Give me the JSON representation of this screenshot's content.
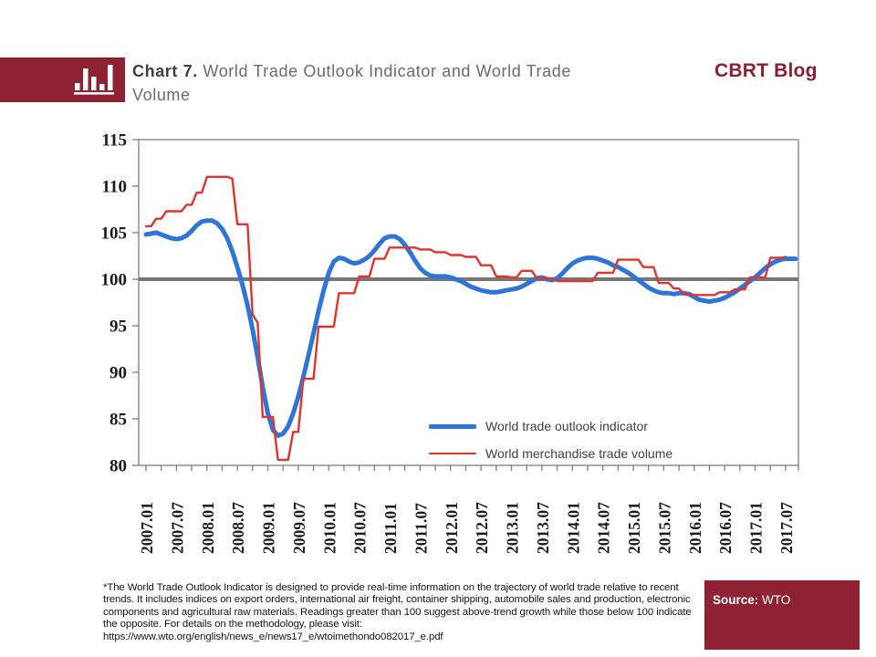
{
  "header": {
    "chart_label": "Chart 7.",
    "title_rest": " World Trade Outlook Indicator and World Trade Volume",
    "brand": "CBRT Blog"
  },
  "colors": {
    "brand_red": "#8E2132",
    "series_blue": "#2E75D8",
    "series_red": "#E0342C",
    "baseline_gray": "#767676",
    "axis_gray": "#808080"
  },
  "chart_data": {
    "type": "line",
    "title": "Chart 7. World Trade Outlook Indicator and World Trade Volume",
    "xlabel": "",
    "ylabel": "",
    "ylim": [
      80,
      115
    ],
    "y_ticks": [
      115,
      110,
      105,
      100,
      95,
      90,
      85,
      80
    ],
    "baseline": 100,
    "grid": false,
    "legend_position": "inside-bottom-right",
    "x_start": "2007.01",
    "x_frequency": "monthly",
    "x_tick_labels": [
      "2007.01",
      "2007.07",
      "2008.01",
      "2008.07",
      "2009.01",
      "2009.07",
      "2010.01",
      "2010.07",
      "2011.01",
      "2011.07",
      "2012.01",
      "2012.07",
      "2013.01",
      "2013.07",
      "2014.01",
      "2014.07",
      "2015.01",
      "2015.07",
      "2016.01",
      "2016.07",
      "2017.01",
      "2017.07"
    ],
    "series": [
      {
        "name": "World trade outlook indicator",
        "color": "#2E75D8",
        "width": 5,
        "range": "2007.01-2017.09",
        "values": [
          104.8,
          104.9,
          105.0,
          104.8,
          104.6,
          104.4,
          104.3,
          104.4,
          104.7,
          105.2,
          105.8,
          106.2,
          106.3,
          106.3,
          106.0,
          105.4,
          104.4,
          103.0,
          101.3,
          99.4,
          97.2,
          94.6,
          91.6,
          88.4,
          85.6,
          83.8,
          83.2,
          83.4,
          84.2,
          85.6,
          87.4,
          89.5,
          91.8,
          94.2,
          96.6,
          98.8,
          100.7,
          101.9,
          102.3,
          102.2,
          101.9,
          101.7,
          101.8,
          102.1,
          102.5,
          103.1,
          103.8,
          104.4,
          104.6,
          104.6,
          104.3,
          103.7,
          102.9,
          102.0,
          101.2,
          100.7,
          100.4,
          100.3,
          100.3,
          100.3,
          100.2,
          100.0,
          99.8,
          99.5,
          99.2,
          99.0,
          98.8,
          98.7,
          98.6,
          98.6,
          98.7,
          98.8,
          98.9,
          99.0,
          99.2,
          99.5,
          99.8,
          100.1,
          100.2,
          100.0,
          99.9,
          100.1,
          100.6,
          101.2,
          101.7,
          102.0,
          102.2,
          102.3,
          102.3,
          102.2,
          102.0,
          101.8,
          101.5,
          101.3,
          101.0,
          100.7,
          100.3,
          99.9,
          99.5,
          99.1,
          98.8,
          98.6,
          98.5,
          98.5,
          98.4,
          98.5,
          98.5,
          98.4,
          98.1,
          97.8,
          97.7,
          97.6,
          97.7,
          97.8,
          98.0,
          98.3,
          98.6,
          99.0,
          99.4,
          99.8,
          100.2,
          100.7,
          101.2,
          101.6,
          101.9,
          102.1,
          102.2,
          102.2,
          102.2
        ]
      },
      {
        "name": "World merchandise trade volume",
        "color": "#E0342C",
        "width": 2.4,
        "range": "2007.01-2017.07",
        "values": [
          105.7,
          105.7,
          106.5,
          106.5,
          107.3,
          107.3,
          107.3,
          107.3,
          108.0,
          108.0,
          109.3,
          109.3,
          111.0,
          111.0,
          111.0,
          111.0,
          111.0,
          110.8,
          105.9,
          105.9,
          105.9,
          96.2,
          95.3,
          85.2,
          85.2,
          85.2,
          80.6,
          80.6,
          80.6,
          83.6,
          83.6,
          89.3,
          89.3,
          89.3,
          94.9,
          94.9,
          94.9,
          94.9,
          98.5,
          98.5,
          98.5,
          98.5,
          100.3,
          100.3,
          100.3,
          102.2,
          102.2,
          102.2,
          103.4,
          103.4,
          103.4,
          103.4,
          103.4,
          103.4,
          103.2,
          103.2,
          103.2,
          102.9,
          102.9,
          102.9,
          102.6,
          102.6,
          102.6,
          102.4,
          102.4,
          102.4,
          101.5,
          101.5,
          101.5,
          100.3,
          100.3,
          100.3,
          100.2,
          100.2,
          100.9,
          100.9,
          100.9,
          100.1,
          100.1,
          100.1,
          100.1,
          99.8,
          99.8,
          99.8,
          99.8,
          99.8,
          99.8,
          99.8,
          99.8,
          100.7,
          100.7,
          100.7,
          100.7,
          102.1,
          102.1,
          102.1,
          102.1,
          102.1,
          101.3,
          101.3,
          101.3,
          99.6,
          99.6,
          99.6,
          99.0,
          99.0,
          98.4,
          98.4,
          98.3,
          98.3,
          98.3,
          98.3,
          98.3,
          98.6,
          98.6,
          98.6,
          98.9,
          98.9,
          98.9,
          100.2,
          100.2,
          100.2,
          100.2,
          102.3,
          102.3,
          102.3,
          102.4
        ]
      }
    ]
  },
  "footnote": {
    "text": "*The World Trade Outlook Indicator is designed to provide real-time information on the trajectory of world trade relative to recent trends. It includes indices on export orders, international air freight, container shipping, automobile sales and production, electronic components and agricultural raw materials. Readings greater than 100 suggest above-trend growth while those below 100 indicate the opposite. For details on the methodology, please visit:",
    "url": "https://www.wto.org/english/news_e/news17_e/wtoimethondo082017_e.pdf"
  },
  "source": {
    "label": "Source:",
    "value": " WTO"
  }
}
